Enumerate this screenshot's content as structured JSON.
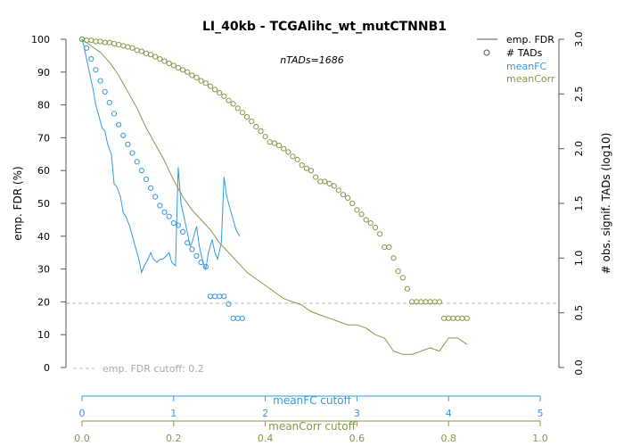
{
  "chart_data": {
    "type": "scatter",
    "title": "LI_40kb - TCGAlihc_wt_mutCTNNB1",
    "subtitle": "nTADs=1686",
    "ylabel_left": "emp. FDR (%)",
    "ylabel_right": "# obs. signif. TADs (log10)",
    "xlabel_fc": "meanFC cutoff",
    "xlabel_corr": "meanCorr cutoff",
    "ylim_left": [
      0,
      100
    ],
    "ylim_right": [
      0,
      3.0
    ],
    "left_ticks": [
      "0",
      "10",
      "20",
      "30",
      "40",
      "50",
      "60",
      "70",
      "80",
      "90",
      "100"
    ],
    "right_ticks": [
      "0.0",
      "0.5",
      "1.0",
      "1.5",
      "2.0",
      "2.5",
      "3.0"
    ],
    "fc_axis": {
      "range": [
        0,
        5
      ],
      "ticks": [
        "0",
        "1",
        "2",
        "3",
        "4",
        "5"
      ]
    },
    "corr_axis": {
      "range": [
        0,
        1
      ],
      "ticks": [
        "0.0",
        "0.2",
        "0.4",
        "0.6",
        "0.8",
        "1.0"
      ]
    },
    "cutoff": {
      "value": 20,
      "label": "emp. FDR cutoff: 0.2"
    },
    "legend": {
      "position": "top-right",
      "items": [
        {
          "label": "emp. FDR",
          "kind": "line",
          "color": "#555555"
        },
        {
          "label": "# TADs",
          "kind": "circle",
          "color": "#555555"
        },
        {
          "label": "meanFC",
          "kind": "text",
          "color": "#3399dd"
        },
        {
          "label": "meanCorr",
          "kind": "text",
          "color": "#7f9a4a"
        }
      ]
    },
    "colors": {
      "fc": "#3399dd",
      "corr": "#7f9a4a",
      "cutoff": "#bbbbbb",
      "axis": "#555555"
    },
    "series": [
      {
        "name": "meanFC",
        "axis": "fc",
        "fdr_line": {
          "x": [
            0,
            0.02,
            0.05,
            0.08,
            0.12,
            0.15,
            0.18,
            0.22,
            0.25,
            0.28,
            0.32,
            0.35,
            0.38,
            0.42,
            0.45,
            0.48,
            0.52,
            0.55,
            0.58,
            0.62,
            0.65,
            0.68,
            0.72,
            0.75,
            0.78,
            0.82,
            0.85,
            0.88,
            0.92,
            0.95,
            0.98,
            1.02,
            1.05,
            1.08,
            1.12,
            1.15,
            1.18,
            1.2,
            1.22,
            1.25,
            1.28,
            1.32,
            1.35,
            1.38,
            1.42,
            1.45,
            1.48,
            1.52,
            1.55,
            1.58,
            1.62,
            1.65,
            1.68,
            1.72
          ],
          "y": [
            100,
            98,
            94,
            90,
            85,
            80,
            77,
            73,
            72,
            68,
            65,
            56,
            55,
            52,
            47,
            46,
            43,
            40,
            37,
            33,
            29,
            31,
            33,
            35,
            33,
            32,
            33,
            33,
            34,
            35,
            32,
            31,
            61,
            50,
            45,
            41,
            37,
            38,
            40,
            43,
            37,
            32,
            30,
            35,
            39,
            35,
            33,
            38,
            58,
            52,
            48,
            45,
            42,
            40
          ]
        },
        "tads": {
          "x": [
            0,
            0.05,
            0.1,
            0.15,
            0.2,
            0.25,
            0.3,
            0.35,
            0.4,
            0.45,
            0.5,
            0.55,
            0.6,
            0.65,
            0.7,
            0.75,
            0.8,
            0.85,
            0.9,
            0.95,
            1.0,
            1.05,
            1.1,
            1.15,
            1.2,
            1.25,
            1.3,
            1.35,
            1.4,
            1.45,
            1.5,
            1.55,
            1.6,
            1.65,
            1.7,
            1.75
          ],
          "y": [
            3.0,
            2.92,
            2.82,
            2.72,
            2.62,
            2.52,
            2.42,
            2.32,
            2.22,
            2.12,
            2.04,
            1.96,
            1.88,
            1.8,
            1.72,
            1.64,
            1.56,
            1.48,
            1.42,
            1.38,
            1.32,
            1.3,
            1.24,
            1.14,
            1.08,
            1.02,
            0.96,
            0.92,
            0.65,
            0.65,
            0.65,
            0.65,
            0.58,
            0.45,
            0.45,
            0.45
          ]
        }
      },
      {
        "name": "meanCorr",
        "axis": "corr",
        "fdr_line": {
          "x": [
            0,
            0.02,
            0.04,
            0.06,
            0.08,
            0.1,
            0.12,
            0.14,
            0.16,
            0.18,
            0.2,
            0.22,
            0.24,
            0.26,
            0.28,
            0.3,
            0.32,
            0.34,
            0.36,
            0.38,
            0.4,
            0.42,
            0.44,
            0.46,
            0.48,
            0.5,
            0.52,
            0.54,
            0.56,
            0.58,
            0.6,
            0.62,
            0.64,
            0.66,
            0.68,
            0.7,
            0.72,
            0.74,
            0.76,
            0.78,
            0.8,
            0.82,
            0.84
          ],
          "y": [
            100,
            98,
            96,
            93,
            89,
            84,
            79,
            73,
            68,
            63,
            57,
            52,
            48,
            45,
            42,
            38,
            35,
            32,
            29,
            27,
            25,
            23,
            21,
            20,
            19,
            17,
            16,
            15,
            14,
            13,
            13,
            12,
            10,
            9,
            5,
            4,
            4,
            5,
            6,
            5,
            9,
            9,
            7
          ]
        },
        "tads": {
          "x": [
            0,
            0.01,
            0.02,
            0.03,
            0.04,
            0.05,
            0.06,
            0.07,
            0.08,
            0.09,
            0.1,
            0.11,
            0.12,
            0.13,
            0.14,
            0.15,
            0.16,
            0.17,
            0.18,
            0.19,
            0.2,
            0.21,
            0.22,
            0.23,
            0.24,
            0.25,
            0.26,
            0.27,
            0.28,
            0.29,
            0.3,
            0.31,
            0.32,
            0.33,
            0.34,
            0.35,
            0.36,
            0.37,
            0.38,
            0.39,
            0.4,
            0.41,
            0.42,
            0.43,
            0.44,
            0.45,
            0.46,
            0.47,
            0.48,
            0.49,
            0.5,
            0.51,
            0.52,
            0.53,
            0.54,
            0.55,
            0.56,
            0.57,
            0.58,
            0.59,
            0.6,
            0.61,
            0.62,
            0.63,
            0.64,
            0.65,
            0.66,
            0.67,
            0.68,
            0.69,
            0.7,
            0.71,
            0.72,
            0.73,
            0.74,
            0.75,
            0.76,
            0.77,
            0.78,
            0.79,
            0.8,
            0.81,
            0.82,
            0.83,
            0.84
          ],
          "y": [
            3.0,
            2.99,
            2.99,
            2.98,
            2.98,
            2.97,
            2.97,
            2.96,
            2.95,
            2.94,
            2.93,
            2.92,
            2.9,
            2.89,
            2.87,
            2.86,
            2.84,
            2.82,
            2.8,
            2.78,
            2.76,
            2.74,
            2.72,
            2.7,
            2.67,
            2.65,
            2.62,
            2.6,
            2.57,
            2.54,
            2.51,
            2.48,
            2.44,
            2.41,
            2.37,
            2.33,
            2.29,
            2.25,
            2.2,
            2.16,
            2.11,
            2.06,
            2.05,
            2.03,
            2.0,
            1.97,
            1.93,
            1.9,
            1.85,
            1.82,
            1.8,
            1.74,
            1.7,
            1.7,
            1.68,
            1.66,
            1.62,
            1.58,
            1.55,
            1.5,
            1.44,
            1.4,
            1.35,
            1.32,
            1.28,
            1.22,
            1.1,
            1.1,
            1.0,
            0.88,
            0.82,
            0.72,
            0.6,
            0.6,
            0.6,
            0.6,
            0.6,
            0.6,
            0.6,
            0.45,
            0.45,
            0.45,
            0.45,
            0.45,
            0.45
          ]
        }
      }
    ]
  }
}
